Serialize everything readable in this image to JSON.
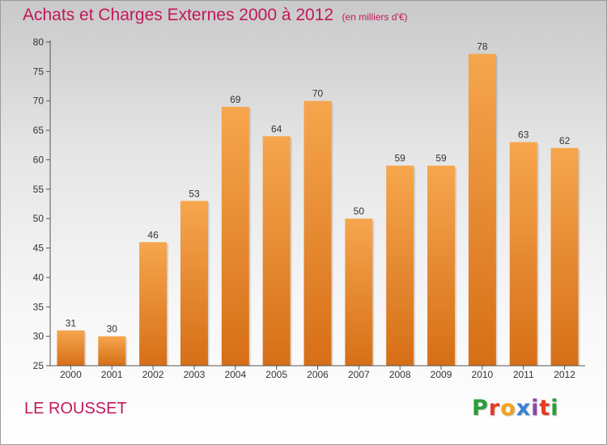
{
  "header": {
    "title": "Achats et Charges Externes 2000 à 2012",
    "unit": "(en milliers d'€)"
  },
  "footer": {
    "place": "LE ROUSSET",
    "brand_letters": [
      "P",
      "r",
      "o",
      "x",
      "i",
      "t",
      "i"
    ],
    "brand_colors": [
      "#2a9d3a",
      "#e23b26",
      "#f3a31b",
      "#3a7fd5",
      "#8e44ad",
      "#e23b26",
      "#2a9d3a"
    ]
  },
  "colors": {
    "bar_light": "#f6a64e",
    "bar_dark": "#d66f17",
    "title": "#c2185b"
  },
  "chart_data": {
    "type": "bar",
    "title": "Achats et Charges Externes 2000 à 2012",
    "subtitle": "(en milliers d'€)",
    "categories": [
      "2000",
      "2001",
      "2002",
      "2003",
      "2004",
      "2005",
      "2006",
      "2007",
      "2008",
      "2009",
      "2010",
      "2011",
      "2012"
    ],
    "values": [
      31,
      30,
      46,
      53,
      69,
      64,
      70,
      50,
      59,
      59,
      78,
      63,
      62
    ],
    "ylim": [
      25,
      80
    ],
    "yticks": [
      25,
      30,
      35,
      40,
      45,
      50,
      55,
      60,
      65,
      70,
      75,
      80
    ],
    "grid": false,
    "data_labels": true
  }
}
